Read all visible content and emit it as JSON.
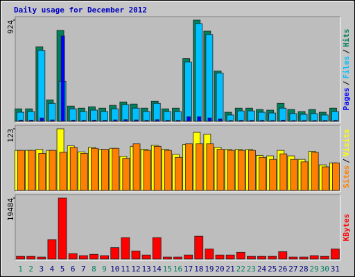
{
  "title": "Daily usage for December 2012",
  "legend_separator": "/",
  "chart_data": [
    {
      "type": "bar",
      "categories": [
        "1",
        "2",
        "3",
        "4",
        "5",
        "6",
        "7",
        "8",
        "9",
        "10",
        "11",
        "12",
        "13",
        "14",
        "15",
        "16",
        "17",
        "18",
        "19",
        "20",
        "21",
        "22",
        "23",
        "24",
        "25",
        "26",
        "27",
        "28",
        "29",
        "30",
        "31"
      ],
      "category_colors": [
        "#00805c",
        "#00805c",
        "#000080",
        "#000080",
        "#000080",
        "#000080",
        "#000080",
        "#00805c",
        "#00805c",
        "#000080",
        "#000080",
        "#000080",
        "#000080",
        "#000080",
        "#00805c",
        "#00805c",
        "#000080",
        "#000080",
        "#000080",
        "#000080",
        "#000080",
        "#00805c",
        "#00805c",
        "#000080",
        "#000080",
        "#000080",
        "#000080",
        "#000080",
        "#00805c",
        "#00805c",
        "#000080"
      ],
      "ylim": [
        0,
        924
      ],
      "yticks": [
        924
      ],
      "series": [
        {
          "name": "Hits",
          "color": "#00805c",
          "values": [
            113,
            113,
            679,
            195,
            830,
            138,
            119,
            132,
            119,
            145,
            176,
            157,
            119,
            182,
            113,
            119,
            572,
            924,
            823,
            459,
            82,
            119,
            119,
            107,
            101,
            163,
            107,
            88,
            107,
            82,
            119
          ]
        },
        {
          "name": "Files",
          "color": "#00c0ff",
          "values": [
            82,
            88,
            647,
            163,
            365,
            113,
            88,
            101,
            88,
            113,
            151,
            119,
            88,
            163,
            88,
            88,
            540,
            892,
            792,
            440,
            57,
            94,
            94,
            82,
            75,
            119,
            69,
            63,
            69,
            57,
            88
          ]
        },
        {
          "name": "Pages",
          "color": "#0000ff",
          "values": [
            10,
            10,
            30,
            12,
            779,
            10,
            8,
            10,
            8,
            12,
            14,
            12,
            8,
            14,
            8,
            8,
            40,
            40,
            30,
            20,
            6,
            8,
            8,
            8,
            6,
            10,
            6,
            6,
            6,
            6,
            8
          ]
        }
      ]
    },
    {
      "type": "bar",
      "ylim": [
        0,
        123
      ],
      "yticks": [
        123
      ],
      "series": [
        {
          "name": "Visits",
          "color": "#ffff00",
          "values": [
            80,
            80,
            82,
            80,
            123,
            89,
            77,
            86,
            82,
            84,
            68,
            88,
            82,
            90,
            82,
            72,
            92,
            116,
            112,
            86,
            82,
            82,
            82,
            70,
            69,
            80,
            69,
            62,
            78,
            51,
            55
          ]
        },
        {
          "name": "Sites",
          "color": "#ff8000",
          "values": [
            80,
            80,
            74,
            80,
            76,
            86,
            74,
            84,
            82,
            84,
            64,
            93,
            80,
            88,
            80,
            66,
            93,
            93,
            93,
            82,
            80,
            80,
            80,
            66,
            62,
            73,
            62,
            57,
            76,
            47,
            55
          ]
        }
      ]
    },
    {
      "type": "bar",
      "ylim": [
        0,
        19484
      ],
      "yticks": [
        19484
      ],
      "series": [
        {
          "name": "KBytes",
          "color": "#ff0000",
          "values": [
            856,
            856,
            642,
            6209,
            19484,
            1713,
            1070,
            1499,
            1070,
            3640,
            6851,
            2569,
            1285,
            6851,
            642,
            642,
            1285,
            7280,
            3212,
            1285,
            1285,
            2141,
            856,
            856,
            856,
            2355,
            642,
            642,
            1070,
            856,
            3212
          ]
        }
      ]
    }
  ]
}
